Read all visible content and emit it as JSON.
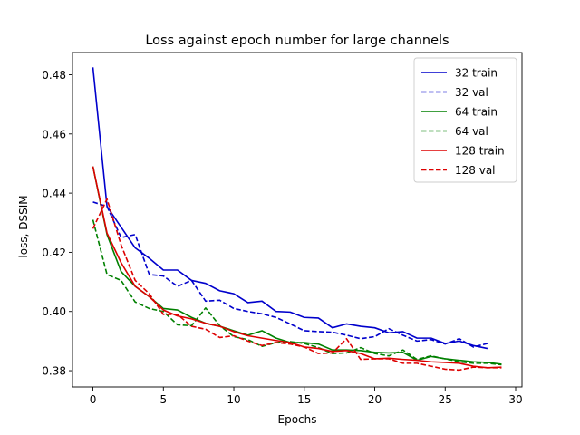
{
  "chart_data": {
    "type": "line",
    "title": "Loss against epoch number for large channels",
    "xlabel": "Epochs",
    "ylabel": "loss, DSSIM",
    "xlim": [
      -1.45,
      30.45
    ],
    "ylim": [
      0.3745,
      0.4875
    ],
    "xticks": [
      0,
      5,
      10,
      15,
      20,
      25,
      30
    ],
    "yticks": [
      0.38,
      0.4,
      0.42,
      0.44,
      0.46,
      0.48
    ],
    "grid": false,
    "legend_position": "top-right",
    "series": [
      {
        "name": "32 train",
        "color": "#0000cc",
        "style": "solid",
        "x": [
          0,
          1,
          2,
          3,
          4,
          5,
          6,
          7,
          8,
          9,
          10,
          11,
          12,
          13,
          14,
          15,
          16,
          17,
          18,
          19,
          20,
          21,
          22,
          23,
          24,
          25,
          26,
          27,
          28
        ],
        "values": [
          0.4825,
          0.4355,
          0.4285,
          0.4215,
          0.418,
          0.414,
          0.414,
          0.4105,
          0.4095,
          0.407,
          0.406,
          0.403,
          0.4035,
          0.4,
          0.3998,
          0.398,
          0.3978,
          0.3945,
          0.3958,
          0.395,
          0.3945,
          0.3928,
          0.3932,
          0.391,
          0.391,
          0.3892,
          0.39,
          0.3885,
          0.3875
        ]
      },
      {
        "name": "32 val",
        "color": "#0000cc",
        "style": "dashed",
        "x": [
          0,
          1,
          2,
          3,
          4,
          5,
          6,
          7,
          8,
          9,
          10,
          11,
          12,
          13,
          14,
          15,
          16,
          17,
          18,
          19,
          20,
          21,
          22,
          23,
          24,
          25,
          26,
          27,
          28
        ],
        "values": [
          0.437,
          0.4355,
          0.425,
          0.426,
          0.4125,
          0.412,
          0.4085,
          0.4105,
          0.4035,
          0.4038,
          0.401,
          0.4,
          0.3992,
          0.398,
          0.3958,
          0.3935,
          0.3932,
          0.393,
          0.392,
          0.3908,
          0.3915,
          0.3942,
          0.392,
          0.39,
          0.3905,
          0.389,
          0.3908,
          0.388,
          0.3892
        ]
      },
      {
        "name": "64 train",
        "color": "#008000",
        "style": "solid",
        "x": [
          0,
          1,
          2,
          3,
          4,
          5,
          6,
          7,
          8,
          9,
          10,
          11,
          12,
          13,
          14,
          15,
          16,
          17,
          18,
          19,
          20,
          21,
          22,
          23,
          24,
          25,
          26,
          27,
          28,
          29
        ],
        "values": [
          0.449,
          0.426,
          0.4135,
          0.4085,
          0.405,
          0.401,
          0.4005,
          0.398,
          0.396,
          0.395,
          0.3935,
          0.392,
          0.3935,
          0.391,
          0.3895,
          0.3895,
          0.389,
          0.387,
          0.387,
          0.3868,
          0.3862,
          0.386,
          0.3862,
          0.3835,
          0.3848,
          0.384,
          0.3835,
          0.383,
          0.3828,
          0.3822
        ]
      },
      {
        "name": "64 val",
        "color": "#008000",
        "style": "dashed",
        "x": [
          0,
          1,
          2,
          3,
          4,
          5,
          6,
          7,
          8,
          9,
          10,
          11,
          12,
          13,
          14,
          15,
          16,
          17,
          18,
          19,
          20,
          21,
          22,
          23,
          24,
          25,
          26,
          27,
          28,
          29
        ],
        "values": [
          0.431,
          0.4125,
          0.4105,
          0.4032,
          0.401,
          0.4,
          0.3955,
          0.3952,
          0.4012,
          0.3952,
          0.3915,
          0.3905,
          0.3882,
          0.3895,
          0.3898,
          0.3892,
          0.3878,
          0.3858,
          0.386,
          0.3878,
          0.3858,
          0.385,
          0.387,
          0.3838,
          0.385,
          0.384,
          0.383,
          0.3825,
          0.3825,
          0.382
        ]
      },
      {
        "name": "128 train",
        "color": "#dd0000",
        "style": "solid",
        "x": [
          0,
          1,
          2,
          3,
          4,
          5,
          6,
          7,
          8,
          9,
          10,
          11,
          12,
          13,
          14,
          15,
          16,
          17,
          18,
          19,
          20,
          21,
          22,
          23,
          24,
          25,
          26,
          27,
          28,
          29
        ],
        "values": [
          0.449,
          0.4265,
          0.4165,
          0.4085,
          0.405,
          0.4005,
          0.3985,
          0.3975,
          0.396,
          0.395,
          0.3932,
          0.3918,
          0.391,
          0.3902,
          0.3895,
          0.388,
          0.3875,
          0.3865,
          0.3868,
          0.3858,
          0.384,
          0.3842,
          0.3838,
          0.3835,
          0.383,
          0.3828,
          0.3825,
          0.3815,
          0.381,
          0.3812
        ]
      },
      {
        "name": "128 val",
        "color": "#dd0000",
        "style": "dashed",
        "x": [
          0,
          1,
          2,
          3,
          4,
          5,
          6,
          7,
          8,
          9,
          10,
          11,
          12,
          13,
          14,
          15,
          16,
          17,
          18,
          19,
          20,
          21,
          22,
          23,
          24,
          25,
          26,
          27,
          28,
          29
        ],
        "values": [
          0.428,
          0.438,
          0.4225,
          0.4105,
          0.406,
          0.399,
          0.399,
          0.395,
          0.394,
          0.3912,
          0.3918,
          0.39,
          0.3885,
          0.3895,
          0.389,
          0.388,
          0.3858,
          0.386,
          0.3908,
          0.3838,
          0.384,
          0.384,
          0.3825,
          0.3825,
          0.3815,
          0.3805,
          0.3802,
          0.3812,
          0.381,
          0.381
        ]
      }
    ]
  }
}
